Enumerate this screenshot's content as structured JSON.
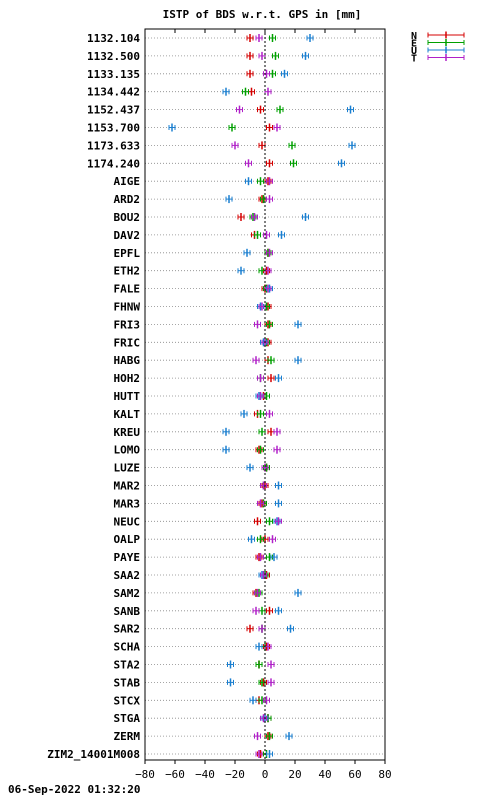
{
  "chart_data": {
    "type": "scatter",
    "title": "ISTP of BDS w.r.t. GPS in [mm]",
    "xlim": [
      -80,
      80
    ],
    "x_ticks": [
      -80,
      -60,
      -40,
      -20,
      0,
      20,
      40,
      60,
      80
    ],
    "grid": true,
    "legend_position": "top-right",
    "footer": "06-Sep-2022 01:32:20",
    "categories": [
      "1132.104",
      "1132.500",
      "1133.135",
      "1134.442",
      "1152.437",
      "1153.700",
      "1173.633",
      "1174.240",
      "AIGE",
      "ARD2",
      "BOU2",
      "DAV2",
      "EPFL",
      "ETH2",
      "FALE",
      "FHNW",
      "FRI3",
      "FRIC",
      "HABG",
      "HOH2",
      "HUTT",
      "KALT",
      "KREU",
      "LOMO",
      "LUZE",
      "MAR2",
      "MAR3",
      "NEUC",
      "OALP",
      "PAYE",
      "SAA2",
      "SAM2",
      "SANB",
      "SAR2",
      "SCHA",
      "STA2",
      "STAB",
      "STCX",
      "STGA",
      "ZERM",
      "ZIM2_14001M008"
    ],
    "series": [
      {
        "name": "N",
        "color": "#d40000",
        "values": [
          -10,
          -10,
          -10,
          -9,
          -3,
          3,
          -2,
          3,
          2,
          -2,
          -16,
          -7,
          2,
          1,
          0,
          2,
          2,
          2,
          2,
          4,
          -1,
          -5,
          4,
          -4,
          1,
          0,
          -2,
          -5,
          0,
          -4,
          1,
          -6,
          3,
          -10,
          1,
          -4,
          -1,
          -4,
          2,
          2,
          -3
        ]
      },
      {
        "name": "E",
        "color": "#00a000",
        "values": [
          5,
          7,
          5,
          -13,
          10,
          -22,
          18,
          19,
          -3,
          -1,
          -8,
          -5,
          2,
          -2,
          1,
          1,
          3,
          1,
          4,
          -3,
          1,
          -3,
          -2,
          -3,
          1,
          -1,
          -1,
          3,
          -3,
          3,
          0,
          -4,
          -2,
          -2,
          0,
          -4,
          -2,
          -2,
          2,
          3,
          1
        ]
      },
      {
        "name": "U",
        "color": "#1a7fd0",
        "values": [
          30,
          27,
          13,
          -26,
          57,
          -62,
          58,
          51,
          -11,
          -24,
          27,
          11,
          -12,
          -16,
          3,
          -3,
          22,
          -1,
          22,
          9,
          -4,
          -14,
          -26,
          -26,
          -10,
          9,
          9,
          8,
          -9,
          6,
          -2,
          22,
          9,
          17,
          -4,
          -23,
          -23,
          -8,
          0,
          16,
          3
        ]
      },
      {
        "name": "T",
        "color": "#b020c8",
        "values": [
          -4,
          -2,
          1,
          2,
          -17,
          8,
          -20,
          -11,
          3,
          3,
          -7,
          1,
          3,
          2,
          2,
          -2,
          -5,
          0,
          -6,
          -3,
          -3,
          3,
          8,
          8,
          0,
          -1,
          -3,
          9,
          5,
          -3,
          -1,
          -5,
          -6,
          -2,
          2,
          4,
          4,
          1,
          -1,
          -5,
          -4
        ]
      }
    ]
  }
}
